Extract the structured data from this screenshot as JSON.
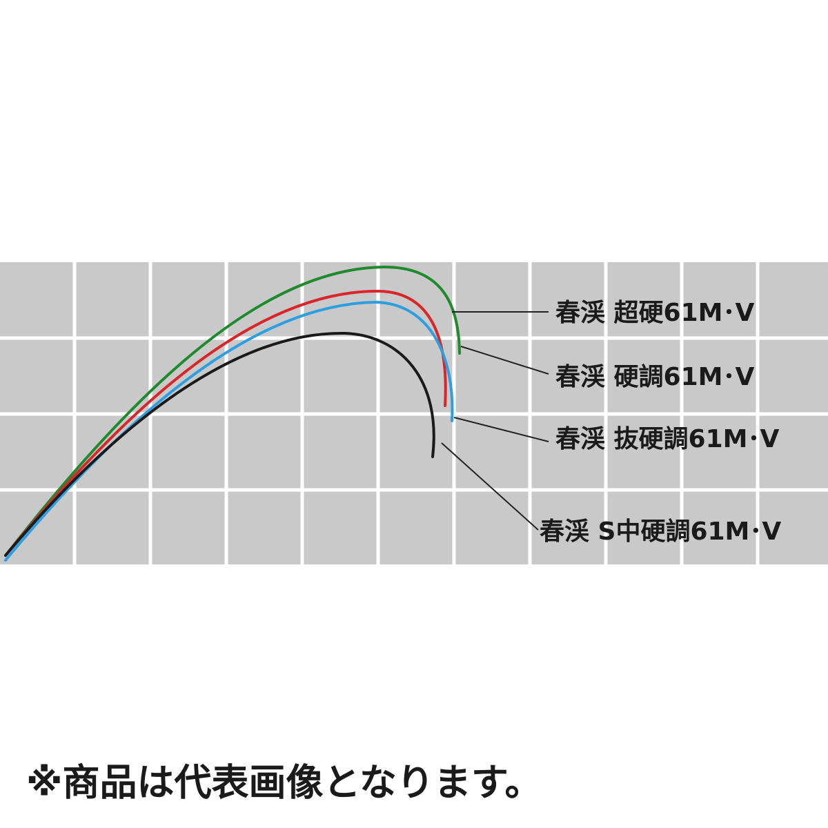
{
  "labels": [
    "春渓 超硬61M･V",
    "春渓 硬調61M･V",
    "春渓 抜硬調61M･V",
    "春渓 S中硬調61M･V"
  ],
  "note": "※商品は代表画像となります。"
}
